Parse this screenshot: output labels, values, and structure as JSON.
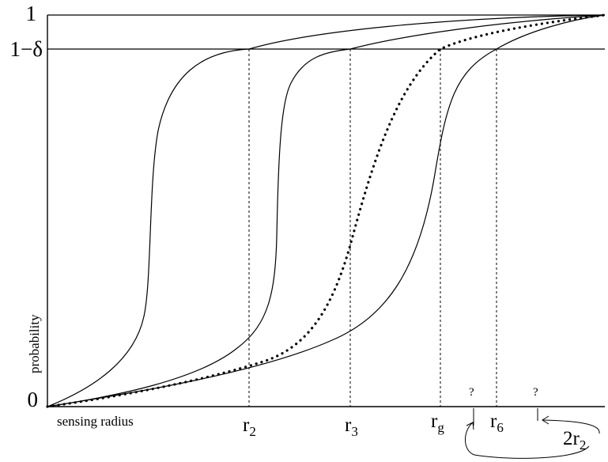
{
  "chart_data": {
    "type": "line",
    "ylabel": "probability",
    "xlabel": "sensing radius",
    "ylim": [
      0,
      1
    ],
    "y_ticks": [
      {
        "value": 0,
        "label": "0"
      },
      {
        "value": 0.9,
        "label": "1−δ"
      },
      {
        "value": 1,
        "label": "1"
      }
    ],
    "x_marks": [
      {
        "base": "r",
        "sub": "2"
      },
      {
        "base": "r",
        "sub": "3"
      },
      {
        "base": "r",
        "sub": "g"
      },
      {
        "base": "r",
        "sub": "6"
      }
    ],
    "question_marks": [
      "?",
      "?"
    ],
    "annotation": {
      "prefix": "2r",
      "sub": "2"
    },
    "series": [
      {
        "style": "solid",
        "threshold": "r2"
      },
      {
        "style": "solid",
        "threshold": "r3"
      },
      {
        "style": "dotted",
        "threshold": "rg"
      },
      {
        "style": "solid",
        "threshold": "r6"
      }
    ]
  }
}
